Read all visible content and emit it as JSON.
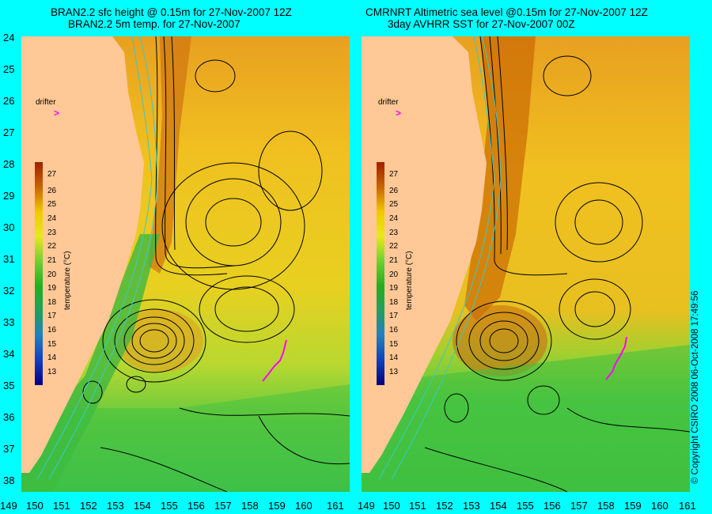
{
  "left_panel": {
    "title_line1": "BRAN2.2 sfc height @ 0.15m for 27-Nov-2007 12Z",
    "title_line2": "BRAN2.2 5m temp. for 27-Nov-2007"
  },
  "right_panel": {
    "title_line1": "CMRNRT Altimetric sea level  @0.15m  for 27-Nov-2007 12Z",
    "title_line2": "3day AVHRR SST for 27-Nov-2007 00Z"
  },
  "drifter_label": "drifter",
  "colorbar": {
    "title": "temperature (°C)",
    "labels": [
      "27",
      "26",
      "25",
      "24",
      "23",
      "22",
      "21",
      "20",
      "19",
      "18",
      "17",
      "16",
      "15",
      "14",
      "13"
    ]
  },
  "y_axis_labels": [
    "24",
    "25",
    "26",
    "27",
    "28",
    "29",
    "30",
    "31",
    "32",
    "33",
    "34",
    "35",
    "36",
    "37",
    "38"
  ],
  "x_axis_labels": [
    "149",
    "150",
    "151",
    "152",
    "153",
    "154",
    "155",
    "156",
    "157",
    "158",
    "159",
    "160",
    "161"
  ],
  "copyright": "© Copyright CSIRO 2008   06-Oct-2008 17:49:56",
  "colors": {
    "frame": "#00ffff",
    "land": "#ffc896",
    "warm": "#c86400",
    "mid": "#f0c800",
    "cool": "#32c832",
    "drifter": "#ff00ff",
    "contour": "#000000",
    "isobath": "#3cc8c8"
  }
}
